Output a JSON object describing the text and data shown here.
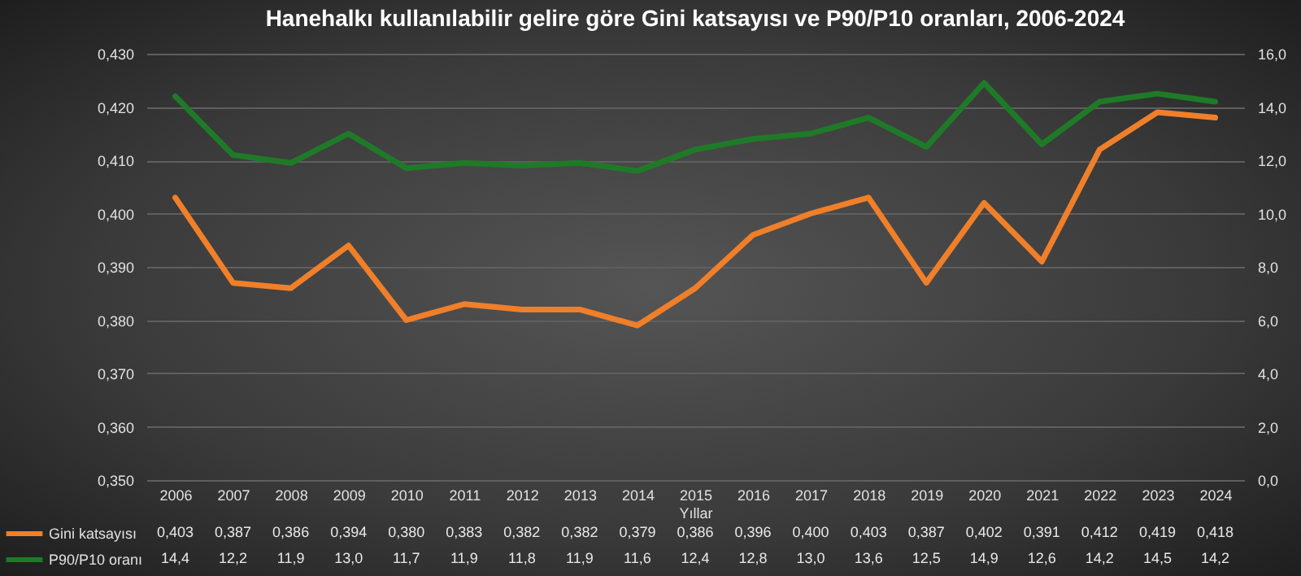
{
  "chart_data": {
    "type": "line",
    "title": "Hanehalkı kullanılabilir gelire göre Gini katsayısı ve P90/P10 oranları, 2006-2024",
    "xlabel": "Yıllar",
    "categories": [
      "2006",
      "2007",
      "2008",
      "2009",
      "2010",
      "2011",
      "2012",
      "2013",
      "2014",
      "2015",
      "2016",
      "2017",
      "2018",
      "2019",
      "2020",
      "2021",
      "2022",
      "2023",
      "2024"
    ],
    "series": [
      {
        "name": "Gini katsayısı",
        "color": "#f07f2a",
        "values": [
          0.403,
          0.387,
          0.386,
          0.394,
          0.38,
          0.383,
          0.382,
          0.382,
          0.379,
          0.386,
          0.396,
          0.4,
          0.403,
          0.387,
          0.402,
          0.391,
          0.412,
          0.419,
          0.418
        ],
        "value_labels": [
          "0,403",
          "0,387",
          "0,386",
          "0,394",
          "0,380",
          "0,383",
          "0,382",
          "0,382",
          "0,379",
          "0,386",
          "0,396",
          "0,400",
          "0,403",
          "0,387",
          "0,402",
          "0,391",
          "0,412",
          "0,419",
          "0,418"
        ]
      },
      {
        "name": "P90/P10 oranı",
        "color": "#1f7a28",
        "axis": "y2",
        "values": [
          14.4,
          12.2,
          11.9,
          13.0,
          11.7,
          11.9,
          11.8,
          11.9,
          11.6,
          12.4,
          12.8,
          13.0,
          13.6,
          12.5,
          14.9,
          12.6,
          14.2,
          14.5,
          14.2
        ],
        "value_labels": [
          "14,4",
          "12,2",
          "11,9",
          "13,0",
          "11,7",
          "11,9",
          "11,8",
          "11,9",
          "11,6",
          "12,4",
          "12,8",
          "13,0",
          "13,6",
          "12,5",
          "14,9",
          "12,6",
          "14,2",
          "14,5",
          "14,2"
        ]
      }
    ],
    "ylim": [
      0.35,
      0.43
    ],
    "yticks": [
      {
        "value": 0.35,
        "label": "0,350"
      },
      {
        "value": 0.36,
        "label": "0,360"
      },
      {
        "value": 0.37,
        "label": "0,370"
      },
      {
        "value": 0.38,
        "label": "0,380"
      },
      {
        "value": 0.39,
        "label": "0,390"
      },
      {
        "value": 0.4,
        "label": "0,400"
      },
      {
        "value": 0.41,
        "label": "0,410"
      },
      {
        "value": 0.42,
        "label": "0,420"
      },
      {
        "value": 0.43,
        "label": "0,430"
      }
    ],
    "y2lim": [
      0,
      16
    ],
    "y2ticks": [
      {
        "value": 0,
        "label": "0,0"
      },
      {
        "value": 2,
        "label": "2,0"
      },
      {
        "value": 4,
        "label": "4,0"
      },
      {
        "value": 6,
        "label": "6,0"
      },
      {
        "value": 8,
        "label": "8,0"
      },
      {
        "value": 10,
        "label": "10,0"
      },
      {
        "value": 12,
        "label": "12,0"
      },
      {
        "value": 14,
        "label": "14,0"
      },
      {
        "value": 16,
        "label": "16,0"
      }
    ],
    "grid": "y",
    "legend": "bottom left",
    "line_style": "solid"
  }
}
